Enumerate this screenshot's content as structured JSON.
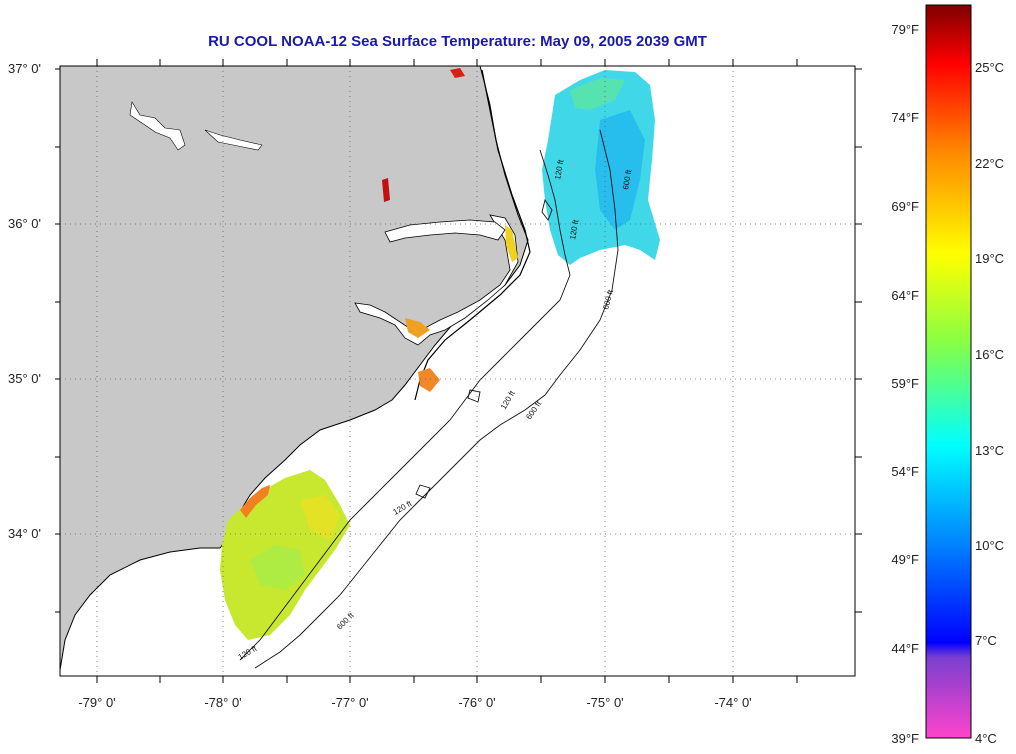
{
  "title": "RU COOL  NOAA-12  Sea Surface Temperature:  May 09, 2005 2039 GMT",
  "axes": {
    "lat_labels": [
      "37° 0'",
      "36° 0'",
      "35° 0'",
      "34° 0'"
    ],
    "lon_labels": [
      "-79° 0'",
      "-78° 0'",
      "-77° 0'",
      "-76° 0'",
      "-75° 0'",
      "-74° 0'"
    ]
  },
  "colorbar": {
    "fahrenheit_labels": [
      "79°F",
      "74°F",
      "69°F",
      "64°F",
      "59°F",
      "54°F",
      "49°F",
      "44°F",
      "39°F"
    ],
    "celsius_labels": [
      "25°C",
      "22°C",
      "19°C",
      "16°C",
      "13°C",
      "10°C",
      "7°C",
      "4°C"
    ],
    "gradient_colors": [
      "#7f0000",
      "#ff0000",
      "#ff8800",
      "#ffff00",
      "#88ff44",
      "#00ffff",
      "#0088ff",
      "#0000ff",
      "#7a3fd0",
      "#ff44cc"
    ]
  },
  "contour_labels": [
    "120 ft",
    "600 ft",
    "120 ft",
    "600 ft",
    "120 ft",
    "600 ft",
    "120 ft",
    "600 ft",
    "120 ft"
  ],
  "colors": {
    "land": "#c8c8c8",
    "ocean": "#ffffff",
    "title": "#1a1aa8",
    "grid": "#555555"
  }
}
